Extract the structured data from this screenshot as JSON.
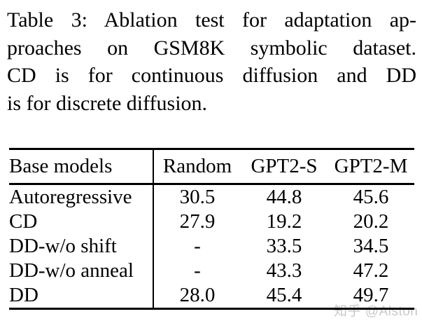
{
  "caption": {
    "lines": [
      "Table 3: Ablation test for adaptation ap-",
      "proaches on GSM8K symbolic dataset.",
      "CD is for continuous diffusion and DD",
      "is for discrete diffusion."
    ]
  },
  "table": {
    "headers": [
      "Base models",
      "Random",
      "GPT2-S",
      "GPT2-M"
    ],
    "rows": [
      {
        "label": "Autoregressive",
        "values": [
          "30.5",
          "44.8",
          "45.6"
        ]
      },
      {
        "label": "CD",
        "values": [
          "27.9",
          "19.2",
          "20.2"
        ]
      },
      {
        "label": "DD-w/o shift",
        "values": [
          "-",
          "33.5",
          "34.5"
        ]
      },
      {
        "label": "DD-w/o anneal",
        "values": [
          "-",
          "43.3",
          "47.2"
        ]
      },
      {
        "label": "DD",
        "values": [
          "28.0",
          "45.4",
          "49.7"
        ]
      }
    ]
  },
  "watermark": {
    "text": "知乎 @Alston"
  },
  "colors": {
    "text": "#000000",
    "background": "#ffffff",
    "rule": "#000000",
    "watermark": "#c9c9c9"
  }
}
